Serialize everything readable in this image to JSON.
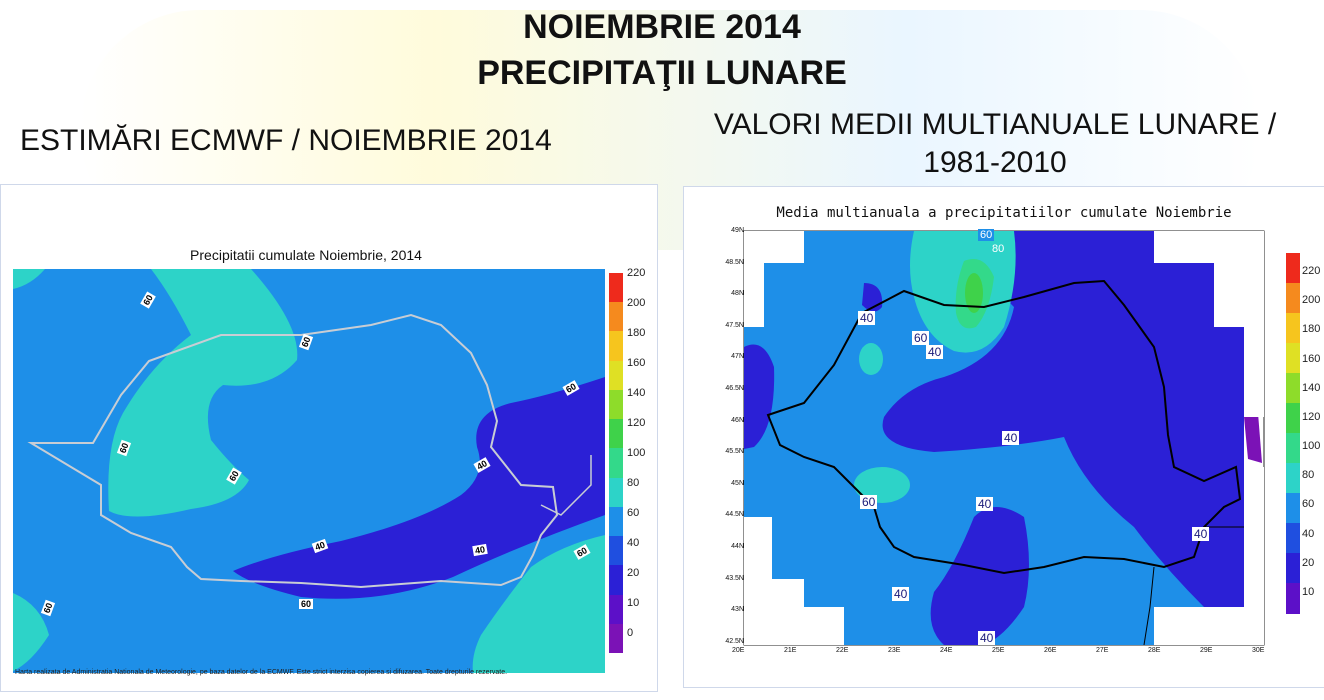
{
  "title_line1": "NOIEMBRIE 2014",
  "title_line2": "PRECIPITAŢII LUNARE",
  "left_heading": "ESTIMĂRI ECMWF / NOIEMBRIE 2014",
  "right_heading": "VALORI MEDII MULTIANUALE LUNARE / 1981-2010",
  "left_map": {
    "title": "Precipitatii cumulate Noiembrie, 2014",
    "footer": "Harta realizata de Administratia Nationala de Meteorologie, pe baza datelor de la ECMWF. Este strict interzisa copierea si difuzarea. Toate drepturile rezervate.",
    "contour_labels": [
      "60",
      "60",
      "60",
      "60",
      "60",
      "40",
      "40",
      "40",
      "60",
      "60",
      "60"
    ],
    "colorbar_ticks": [
      "220",
      "200",
      "180",
      "160",
      "140",
      "120",
      "100",
      "80",
      "60",
      "40",
      "20",
      "10",
      "0"
    ]
  },
  "right_map": {
    "title": "Media multianuala a precipitatiilor cumulate Noiembrie",
    "contour_labels": [
      "60",
      "80",
      "40",
      "60",
      "40",
      "40",
      "60",
      "40",
      "40",
      "40",
      "40"
    ],
    "lat_ticks": [
      "49N",
      "48.5N",
      "48N",
      "47.5N",
      "47N",
      "46.5N",
      "46N",
      "45.5N",
      "45N",
      "44.5N",
      "44N",
      "43.5N",
      "43N",
      "42.5N"
    ],
    "lon_ticks": [
      "20E",
      "21E",
      "22E",
      "23E",
      "24E",
      "25E",
      "26E",
      "27E",
      "28E",
      "29E",
      "30E"
    ],
    "colorbar_ticks": [
      "220",
      "200",
      "180",
      "160",
      "140",
      "120",
      "100",
      "80",
      "60",
      "40",
      "20",
      "10"
    ]
  },
  "colors": {
    "c0": "#7b12b6",
    "c10": "#5c10c8",
    "c20": "#2b20d6",
    "c40": "#1f4fe0",
    "c60": "#1e8fe8",
    "c80": "#2dd3c8",
    "c100": "#33d98a",
    "c120": "#3fd24a",
    "c140": "#8edc2a",
    "c160": "#dfe024",
    "c180": "#f6c51e",
    "c200": "#f58a1e",
    "c220": "#ee2a1c"
  }
}
